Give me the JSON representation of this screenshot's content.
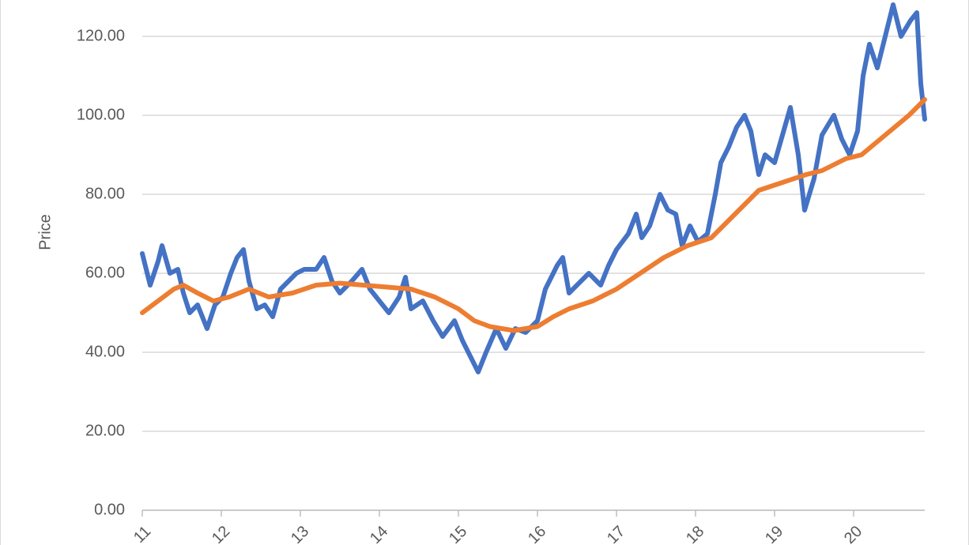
{
  "chart_data": {
    "type": "line",
    "y_label": "Price",
    "xlim": [
      11,
      20.9
    ],
    "xticks": [
      11,
      12,
      13,
      14,
      15,
      16,
      17,
      18,
      19,
      20
    ],
    "ylim": [
      0,
      129.2
    ],
    "yticks": [
      {
        "value": 0,
        "label": "0.00"
      },
      {
        "value": 20,
        "label": "20.00"
      },
      {
        "value": 40,
        "label": "40.00"
      },
      {
        "value": 60,
        "label": "60.00"
      },
      {
        "value": 80,
        "label": "80.00"
      },
      {
        "value": 100,
        "label": "100.00"
      },
      {
        "value": 120,
        "label": "120.00"
      }
    ],
    "grid": true,
    "series": [
      {
        "color": "#4472c4",
        "x": [
          11.0,
          11.1,
          11.2,
          11.25,
          11.35,
          11.45,
          11.52,
          11.6,
          11.7,
          11.82,
          11.92,
          12.02,
          12.12,
          12.2,
          12.28,
          12.35,
          12.45,
          12.55,
          12.65,
          12.75,
          12.85,
          12.95,
          13.05,
          13.2,
          13.3,
          13.4,
          13.5,
          13.65,
          13.78,
          13.88,
          14.0,
          14.12,
          14.25,
          14.33,
          14.4,
          14.55,
          14.68,
          14.8,
          14.95,
          15.05,
          15.15,
          15.25,
          15.35,
          15.48,
          15.6,
          15.72,
          15.85,
          16.0,
          16.1,
          16.25,
          16.32,
          16.4,
          16.55,
          16.65,
          16.8,
          16.9,
          17.0,
          17.15,
          17.25,
          17.32,
          17.42,
          17.55,
          17.65,
          17.75,
          17.83,
          17.93,
          18.03,
          18.15,
          18.25,
          18.32,
          18.42,
          18.52,
          18.62,
          18.7,
          18.8,
          18.88,
          19.0,
          19.1,
          19.2,
          19.3,
          19.38,
          19.5,
          19.6,
          19.75,
          19.85,
          19.95,
          20.05,
          20.12,
          20.2,
          20.3,
          20.4,
          20.5,
          20.6,
          20.72,
          20.8,
          20.85,
          20.9
        ],
        "values": [
          65,
          57,
          63,
          67,
          60,
          61,
          55,
          50,
          52,
          46,
          52,
          54,
          60,
          64,
          66,
          58,
          51,
          52,
          49,
          56,
          58,
          60,
          61,
          61,
          64,
          58,
          55,
          58,
          61,
          56,
          53,
          50,
          54,
          59,
          51,
          53,
          48,
          44,
          48,
          43,
          39,
          35,
          40,
          46,
          41,
          46,
          45,
          48,
          56,
          62,
          64,
          55,
          58,
          60,
          57,
          62,
          66,
          70,
          75,
          69,
          72,
          80,
          76,
          75,
          67,
          72,
          68,
          70,
          80,
          88,
          92,
          97,
          100,
          96,
          85,
          90,
          88,
          95,
          102,
          90,
          76,
          84,
          95,
          100,
          94,
          90,
          96,
          110,
          118,
          112,
          120,
          128,
          120,
          124,
          126,
          108,
          99
        ]
      },
      {
        "color": "#ed7d31",
        "x": [
          11.0,
          11.2,
          11.4,
          11.52,
          11.7,
          11.9,
          12.1,
          12.35,
          12.6,
          12.9,
          13.2,
          13.5,
          13.8,
          14.1,
          14.4,
          14.7,
          15.0,
          15.2,
          15.4,
          15.7,
          16.0,
          16.2,
          16.4,
          16.7,
          17.0,
          17.3,
          17.6,
          17.9,
          18.2,
          18.5,
          18.8,
          19.1,
          19.4,
          19.6,
          19.9,
          20.1,
          20.4,
          20.7,
          20.9
        ],
        "values": [
          50,
          53,
          56,
          57,
          55,
          53,
          54,
          56,
          54,
          55,
          57,
          57.5,
          57,
          56.5,
          56,
          54,
          51,
          48,
          46.5,
          45.5,
          46.5,
          49,
          51,
          53,
          56,
          60,
          64,
          67,
          69,
          75,
          81,
          83,
          85,
          86,
          89,
          90,
          95,
          100,
          104
        ]
      }
    ]
  }
}
